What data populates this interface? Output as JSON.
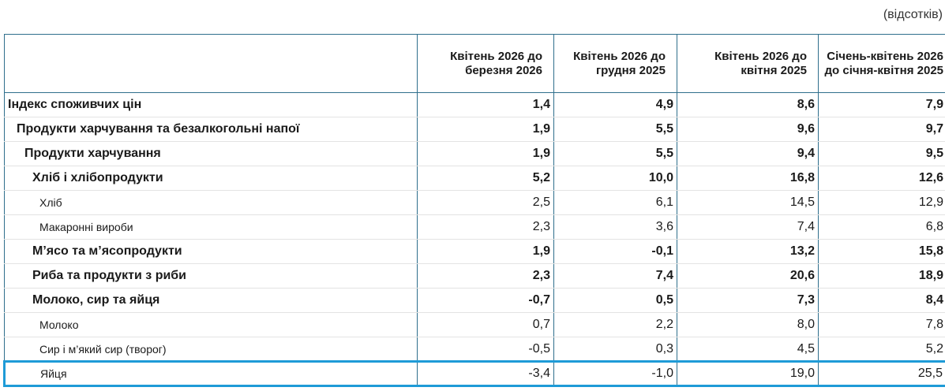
{
  "unit_note": "(відсотків)",
  "highlight_color": "#1e9bd7",
  "border_color": "#2f6f8c",
  "columns": [
    {
      "line1": "Квітень 2026 до",
      "line2": "березня 2026"
    },
    {
      "line1": "Квітень 2026 до",
      "line2": "грудня 2025"
    },
    {
      "line1": "Квітень 2026 до",
      "line2": "квітня 2025"
    },
    {
      "line1": "Січень-квітень 2026",
      "line2": "до січня-квітня 2025"
    }
  ],
  "rows": [
    {
      "label": "Індекс споживчих цін",
      "level": 0,
      "values": [
        "1,4",
        "4,9",
        "8,6",
        "7,9"
      ]
    },
    {
      "label": "Продукти харчування та безалкогольні напої",
      "level": 1,
      "values": [
        "1,9",
        "5,5",
        "9,6",
        "9,7"
      ]
    },
    {
      "label": "Продукти харчування",
      "level": 2,
      "values": [
        "1,9",
        "5,5",
        "9,4",
        "9,5"
      ]
    },
    {
      "label": "Хліб і хлібопродукти",
      "level": 3,
      "values": [
        "5,2",
        "10,0",
        "16,8",
        "12,6"
      ]
    },
    {
      "label": "Хліб",
      "level": 4,
      "values": [
        "2,5",
        "6,1",
        "14,5",
        "12,9"
      ]
    },
    {
      "label": "Макаронні вироби",
      "level": 4,
      "values": [
        "2,3",
        "3,6",
        "7,4",
        "6,8"
      ]
    },
    {
      "label": "М’ясо та м’ясопродукти",
      "level": 3,
      "values": [
        "1,9",
        "-0,1",
        "13,2",
        "15,8"
      ]
    },
    {
      "label": "Риба та продукти з риби",
      "level": 3,
      "values": [
        "2,3",
        "7,4",
        "20,6",
        "18,9"
      ]
    },
    {
      "label": "Молоко, сир та яйця",
      "level": 3,
      "values": [
        "-0,7",
        "0,5",
        "7,3",
        "8,4"
      ]
    },
    {
      "label": "Молоко",
      "level": 4,
      "values": [
        "0,7",
        "2,2",
        "8,0",
        "7,8"
      ]
    },
    {
      "label": "Сир і м’який сир (творог)",
      "level": 4,
      "values": [
        "-0,5",
        "0,3",
        "4,5",
        "5,2"
      ]
    },
    {
      "label": "Яйця",
      "level": 4,
      "highlighted": true,
      "values": [
        "-3,4",
        "-1,0",
        "19,0",
        "25,5"
      ]
    }
  ]
}
